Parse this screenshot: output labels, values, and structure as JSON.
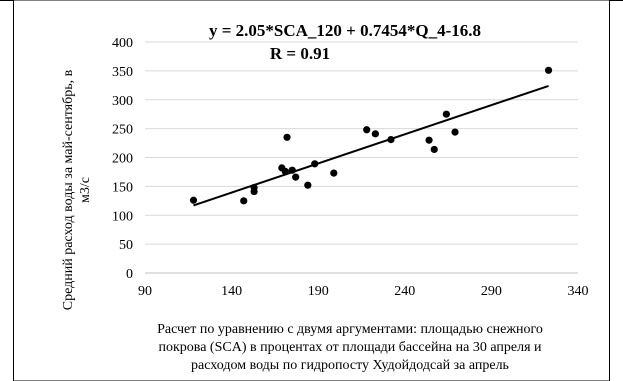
{
  "chart_data": {
    "type": "scatter",
    "title": "y = 2.05*SCA_120 + 0.7454*Q_4-16.8",
    "subtitle": "R = 0.91",
    "ylabel": [
      "Средний расход воды за май-сентябрь, в",
      "м3/с"
    ],
    "xlabel": [
      "Расчет по уравнению с двумя аргументами: площадью снежного",
      "покрова (SCA) в процентах от площади бассейна на 30 апреля и",
      "расходом воды по гидропосту Худойдодсай за апрель"
    ],
    "xlim": [
      90,
      340
    ],
    "ylim": [
      0,
      400
    ],
    "xticks": [
      90,
      140,
      190,
      240,
      290,
      340
    ],
    "yticks": [
      0,
      50,
      100,
      150,
      200,
      250,
      300,
      350,
      400
    ],
    "grid": "horizontal",
    "legend": "none",
    "colors": {
      "points": "#000000",
      "trendline": "#000000",
      "grid": "#d9d9d9",
      "border": "#000000"
    },
    "points": [
      {
        "x": 118,
        "y": 126
      },
      {
        "x": 147,
        "y": 125
      },
      {
        "x": 153,
        "y": 141
      },
      {
        "x": 153,
        "y": 148
      },
      {
        "x": 169,
        "y": 182
      },
      {
        "x": 171,
        "y": 176
      },
      {
        "x": 172,
        "y": 235
      },
      {
        "x": 175,
        "y": 178
      },
      {
        "x": 177,
        "y": 166
      },
      {
        "x": 184,
        "y": 152
      },
      {
        "x": 188,
        "y": 189
      },
      {
        "x": 199,
        "y": 173
      },
      {
        "x": 218,
        "y": 248
      },
      {
        "x": 223,
        "y": 241
      },
      {
        "x": 232,
        "y": 231
      },
      {
        "x": 254,
        "y": 230
      },
      {
        "x": 257,
        "y": 214
      },
      {
        "x": 264,
        "y": 275
      },
      {
        "x": 269,
        "y": 244
      },
      {
        "x": 323,
        "y": 351
      }
    ],
    "trendline": {
      "x": [
        118,
        323
      ],
      "y": [
        117,
        324
      ]
    }
  }
}
